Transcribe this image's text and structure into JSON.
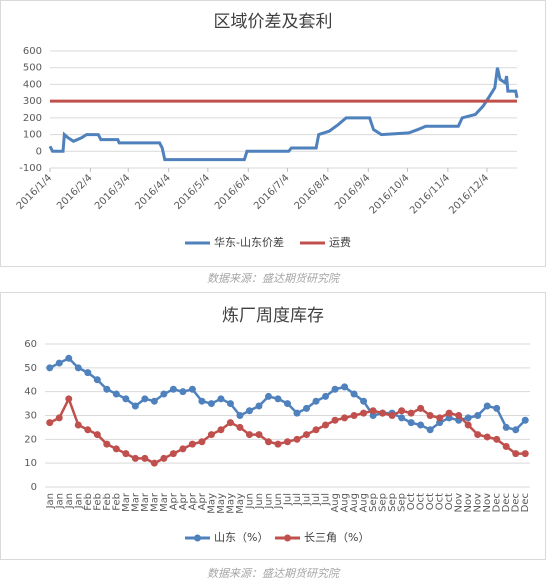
{
  "sources": [
    "数据来源：盛达期货研究院",
    "数据来源：盛达期货研究院"
  ],
  "chart_data": [
    {
      "type": "line",
      "title": "区域价差及套利",
      "xlim": [
        "2016/1/4",
        "2016/12/27"
      ],
      "xticks": [
        "2016/1/4",
        "2016/2/4",
        "2016/3/4",
        "2016/4/4",
        "2016/5/4",
        "2016/6/4",
        "2016/7/4",
        "2016/8/4",
        "2016/9/4",
        "2016/10/4",
        "2016/11/4",
        "2016/12/4"
      ],
      "ylim": [
        -100,
        600
      ],
      "yticks": [
        -100,
        0,
        100,
        200,
        300,
        400,
        500,
        600
      ],
      "grid": true,
      "series": [
        {
          "name": "华东-山东价差",
          "color": "#4f81bd",
          "x": [
            "2016/1/4",
            "2016/1/6",
            "2016/1/14",
            "2016/1/15",
            "2016/1/18",
            "2016/1/22",
            "2016/1/28",
            "2016/2/1",
            "2016/2/10",
            "2016/2/12",
            "2016/2/25",
            "2016/2/26",
            "2016/3/28",
            "2016/3/30",
            "2016/4/1",
            "2016/6/1",
            "2016/6/3",
            "2016/7/5",
            "2016/7/7",
            "2016/7/26",
            "2016/7/28",
            "2016/8/5",
            "2016/8/12",
            "2016/8/18",
            "2016/9/5",
            "2016/9/8",
            "2016/9/14",
            "2016/10/5",
            "2016/10/12",
            "2016/10/18",
            "2016/11/12",
            "2016/11/15",
            "2016/11/25",
            "2016/12/1",
            "2016/12/6",
            "2016/12/10",
            "2016/12/12",
            "2016/12/14",
            "2016/12/18",
            "2016/12/19",
            "2016/12/20",
            "2016/12/26",
            "2016/12/27"
          ],
          "values": [
            30,
            0,
            0,
            100,
            80,
            60,
            80,
            100,
            100,
            70,
            70,
            50,
            50,
            20,
            -50,
            -50,
            0,
            0,
            20,
            20,
            100,
            120,
            160,
            200,
            200,
            130,
            100,
            110,
            130,
            150,
            150,
            200,
            220,
            270,
            330,
            380,
            500,
            430,
            410,
            450,
            360,
            360,
            320
          ]
        },
        {
          "name": "运费",
          "color": "#c0504d",
          "x": [
            "2016/1/4",
            "2016/12/27"
          ],
          "values": [
            300,
            300
          ]
        }
      ]
    },
    {
      "type": "line",
      "title": "炼厂周度库存",
      "categories": [
        "Jan",
        "Jan",
        "Jan",
        "Jan",
        "Feb",
        "Feb",
        "Feb",
        "Feb",
        "Mar",
        "Mar",
        "Mar",
        "Mar",
        "Mar",
        "Apr",
        "Apr",
        "Apr",
        "Apr",
        "May",
        "May",
        "May",
        "May",
        "Jun",
        "Jun",
        "Jun",
        "Jun",
        "Jul",
        "Jul",
        "Jul",
        "Jul",
        "Jul",
        "Aug",
        "Aug",
        "Aug",
        "Aug",
        "Sep",
        "Sep",
        "Sep",
        "Sep",
        "Oct",
        "Oct",
        "Oct",
        "Oct",
        "Oct",
        "Nov",
        "Nov",
        "Nov",
        "Nov",
        "Dec",
        "Dec",
        "Dec",
        "Dec"
      ],
      "ylim": [
        0,
        60
      ],
      "yticks": [
        0,
        10,
        20,
        30,
        40,
        50,
        60
      ],
      "grid": true,
      "markers": true,
      "series": [
        {
          "name": "山东（%）",
          "color": "#4f81bd",
          "values": [
            50,
            52,
            54,
            50,
            48,
            45,
            41,
            39,
            37,
            34,
            37,
            36,
            39,
            41,
            40,
            41,
            36,
            35,
            37,
            35,
            30,
            32,
            34,
            38,
            37,
            35,
            31,
            33,
            36,
            38,
            41,
            42,
            39,
            36,
            30,
            31,
            31,
            29,
            27,
            26,
            24,
            27,
            29,
            28,
            29,
            30,
            34,
            33,
            25,
            24,
            28
          ]
        },
        {
          "name": "长三角（%）",
          "color": "#c0504d",
          "values": [
            27,
            29,
            37,
            26,
            24,
            22,
            18,
            16,
            14,
            12,
            12,
            10,
            12,
            14,
            16,
            18,
            19,
            22,
            24,
            27,
            25,
            22,
            22,
            19,
            18,
            19,
            20,
            22,
            24,
            26,
            28,
            29,
            30,
            31,
            32,
            31,
            30,
            32,
            31,
            33,
            30,
            29,
            31,
            30,
            26,
            22,
            21,
            20,
            17,
            14,
            14
          ]
        }
      ]
    }
  ]
}
